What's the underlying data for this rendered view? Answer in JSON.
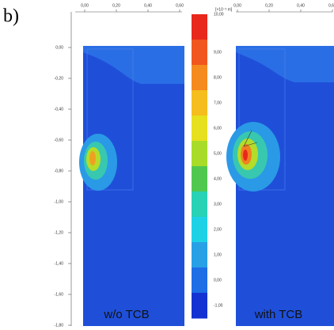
{
  "figure_label": "b)",
  "left_panel": {
    "x_ticks": [
      "0,00",
      "0,20",
      "0,40",
      "0,60"
    ],
    "y_ticks": [
      "0,00",
      "-0,20",
      "-0,40",
      "-0,60",
      "-0,80",
      "-1,00",
      "-1,20",
      "-1,40",
      "-1,60",
      "-1,80"
    ],
    "caption": "w/o TCB"
  },
  "colorbar": {
    "unit": "[×10⁻³ m]",
    "labels": [
      "10,00",
      "9,00",
      "8,00",
      "7,00",
      "6,00",
      "5,00",
      "4,00",
      "3,00",
      "2,00",
      "1,00",
      "0,00",
      "-1,00"
    ]
  },
  "right_panel": {
    "x_ticks": [
      "0,00",
      "0,20",
      "0,40",
      "0,60"
    ],
    "caption": "with TCB"
  }
}
